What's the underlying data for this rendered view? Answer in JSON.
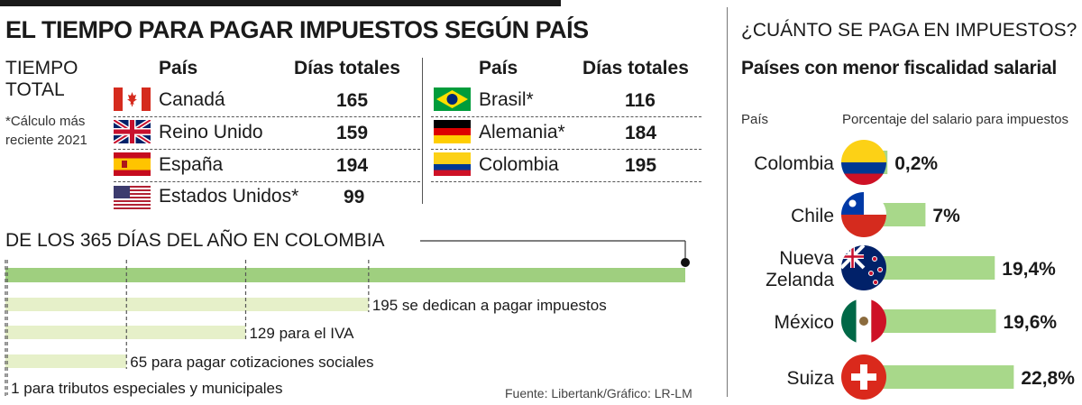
{
  "title": "EL TIEMPO PARA PAGAR IMPUESTOS SEGÚN PAÍS",
  "side_header": "TIEMPO TOTAL",
  "side_note": "*Cálculo más reciente 2021",
  "table_left": {
    "col_country": "País",
    "col_days": "Días totales",
    "rows": [
      {
        "country": "Canadá",
        "days": "165",
        "flag": "canada-flag"
      },
      {
        "country": "Reino Unido",
        "days": "159",
        "flag": "uk-flag"
      },
      {
        "country": "España",
        "days": "194",
        "flag": "spain-flag"
      },
      {
        "country": "Estados Unidos*",
        "days": "99",
        "flag": "usa-flag"
      }
    ]
  },
  "table_right": {
    "col_country": "País",
    "col_days": "Días totales",
    "rows": [
      {
        "country": "Brasil*",
        "days": "116",
        "flag": "brazil-flag"
      },
      {
        "country": "Alemania*",
        "days": "184",
        "flag": "germany-flag"
      },
      {
        "country": "Colombia",
        "days": "195",
        "flag": "colombia-flag"
      }
    ]
  },
  "chart_data": [
    {
      "type": "bar",
      "title": "DE LOS 365 DÍAS DEL AÑO EN COLOMBIA",
      "orientation": "horizontal",
      "xlim": [
        0,
        365
      ],
      "total": 365,
      "bars": [
        {
          "value": 195,
          "label_value": "195",
          "label_text": "se dedican a pagar impuestos"
        },
        {
          "value": 129,
          "label_value": "129",
          "label_text": "para el IVA"
        },
        {
          "value": 65,
          "label_value": "65",
          "label_text": "para pagar cotizaciones sociales"
        },
        {
          "value": 1,
          "label_value": "1",
          "label_text": "para tributos especiales y municipales"
        }
      ],
      "colors": {
        "total": "#9fcf7f",
        "bars": "#e6f0c9",
        "marker": "#111111"
      }
    },
    {
      "type": "bar",
      "title": "¿CUÁNTO SE PAGA EN IMPUESTOS?",
      "subtitle": "Países con menor fiscalidad salarial",
      "xlabel": "País",
      "ylabel": "Porcentaje del salario para impuestos",
      "orientation": "horizontal",
      "categories": [
        "Colombia",
        "Chile",
        "Nueva Zelanda",
        "México",
        "Suiza"
      ],
      "category_lines": [
        [
          "Colombia"
        ],
        [
          "Chile"
        ],
        [
          "Nueva",
          "Zelanda"
        ],
        [
          "México"
        ],
        [
          "Suiza"
        ]
      ],
      "values": [
        0.2,
        7,
        19.4,
        19.6,
        22.8
      ],
      "value_labels": [
        "0,2%",
        "7%",
        "19,4%",
        "19,6%",
        "22,8%"
      ],
      "xlim": [
        0,
        25
      ],
      "colors": {
        "bar": "#a8d88a"
      }
    }
  ],
  "source": "Fuente: Libertank/Gráfico: LR-LM"
}
